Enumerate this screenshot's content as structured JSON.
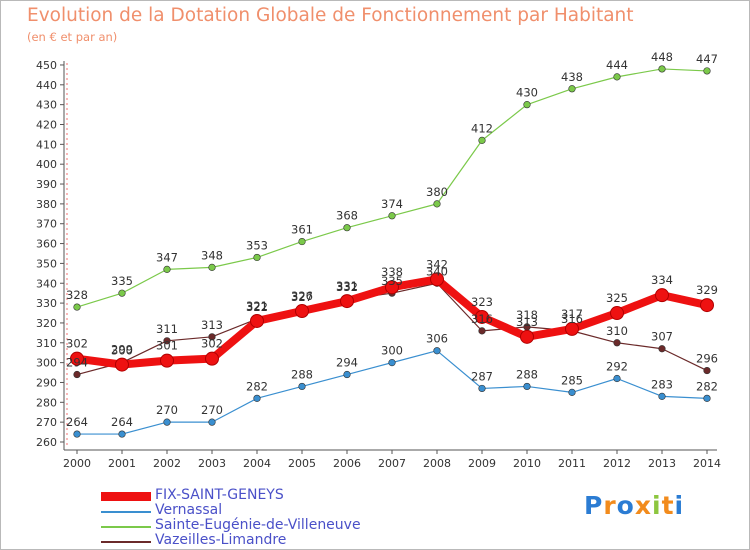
{
  "title": "Evolution de la Dotation Globale de Fonctionnement par Habitant",
  "subtitle": "(en € et par an)",
  "logo": {
    "text": "Proxiti",
    "colors": [
      "#2b7cd3",
      "#f28b1c",
      "#2b7cd3",
      "#f28b1c",
      "#8dc63f",
      "#f28b1c",
      "#2b7cd3"
    ]
  },
  "chart_data": {
    "type": "line",
    "title": "Evolution de la Dotation Globale de Fonctionnement par Habitant",
    "subtitle": "(en € et par an)",
    "xlabel": "",
    "ylabel": "",
    "categories": [
      "2000",
      "2001",
      "2002",
      "2003",
      "2004",
      "2005",
      "2006",
      "2007",
      "2008",
      "2009",
      "2010",
      "2011",
      "2012",
      "2013",
      "2014"
    ],
    "y_ticks": [
      260,
      270,
      280,
      290,
      300,
      310,
      320,
      330,
      340,
      350,
      360,
      370,
      380,
      390,
      400,
      410,
      420,
      430,
      440,
      450
    ],
    "ylim": [
      260,
      452
    ],
    "grid": false,
    "legend_position": "bottom-left",
    "series": [
      {
        "name": "Vernassal",
        "color": "#3a8fd0",
        "values": [
          264,
          264,
          270,
          270,
          282,
          288,
          294,
          300,
          306,
          287,
          288,
          285,
          292,
          283,
          282
        ],
        "labels": [
          "264",
          "264",
          "270",
          "270",
          "282",
          "288",
          "294",
          "300",
          "306",
          "287",
          "288",
          "285",
          "292",
          "283",
          "282"
        ]
      },
      {
        "name": "Sainte-Eugénie-de-Villeneuve",
        "color": "#7bc94a",
        "values": [
          328,
          335,
          347,
          348,
          353,
          361,
          368,
          374,
          380,
          412,
          430,
          438,
          444,
          448,
          447
        ],
        "labels": [
          "328",
          "335",
          "347",
          "348",
          "353",
          "361",
          "368",
          "374",
          "380",
          "412",
          "430",
          "438",
          "444",
          "448",
          "447"
        ]
      },
      {
        "name": "Vazeilles-Limandre",
        "color": "#6b2a2a",
        "values": [
          294,
          300,
          311,
          313,
          322,
          327,
          332,
          335,
          340,
          316,
          318,
          316,
          310,
          307,
          296
        ],
        "labels": [
          "294",
          "300",
          "311",
          "313",
          "322",
          "327",
          "332",
          "335",
          "340",
          "316",
          "318",
          "316",
          "310",
          "307",
          "296"
        ]
      },
      {
        "name": "FIX-SAINT-GENEYS",
        "color": "#ee1111",
        "values": [
          302,
          299,
          301,
          302,
          321,
          326,
          331,
          338,
          342,
          323,
          313,
          317,
          325,
          334,
          329
        ],
        "labels": [
          "302",
          "299",
          "301",
          "302",
          "321",
          "326",
          "331",
          "338",
          "342",
          "323",
          "313",
          "317",
          "325",
          "334",
          "329"
        ]
      }
    ]
  },
  "legend": [
    {
      "label": "FIX-SAINT-GENEYS",
      "color": "#ee1111",
      "style": "thick"
    },
    {
      "label": "Vernassal",
      "color": "#3a8fd0",
      "style": "thin"
    },
    {
      "label": "Sainte-Eugénie-de-Villeneuve",
      "color": "#7bc94a",
      "style": "thin"
    },
    {
      "label": "Vazeilles-Limandre",
      "color": "#6b2a2a",
      "style": "thin"
    }
  ]
}
